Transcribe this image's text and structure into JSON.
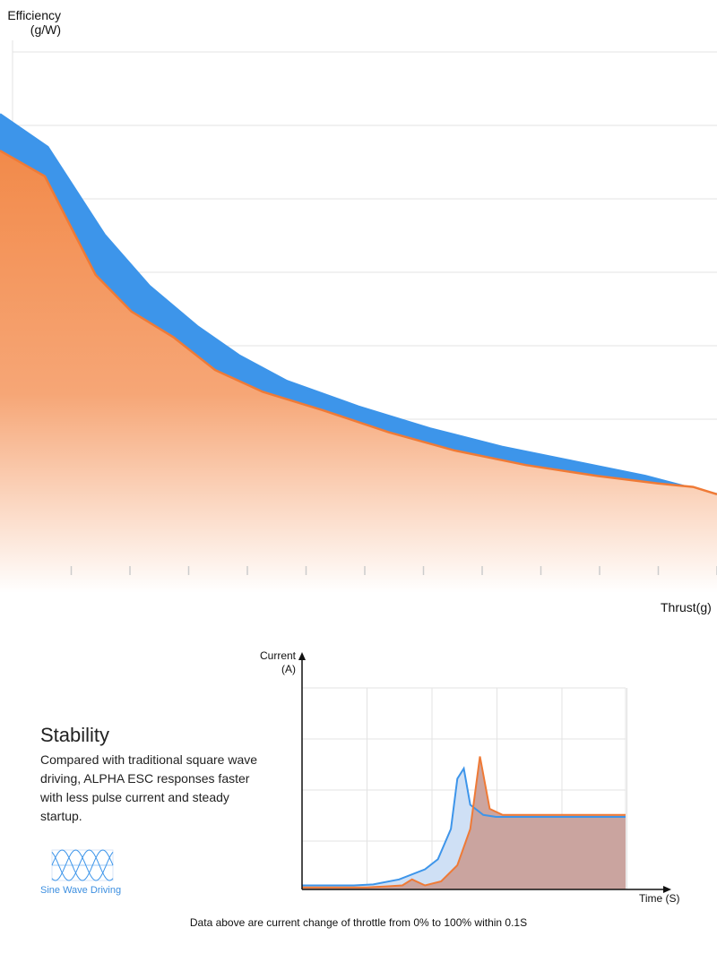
{
  "charts_meta": {
    "efficiency": {
      "ylabel_line1": "Efficiency",
      "ylabel_line2": "(g/W)",
      "xlabel": "Thrust(g)"
    },
    "current": {
      "ylabel_line1": "Current",
      "ylabel_line2": "(A)",
      "xlabel": "Time  (S)",
      "caption": "Data above are current change of throttle from 0% to 100% within 0.1S"
    }
  },
  "stability": {
    "title": "Stability",
    "body": "Compared with traditional square wave driving, ALPHA ESC responses faster with less pulse current and steady startup.",
    "icon": "sine-wave-icon",
    "icon_label": "Sine Wave Driving"
  },
  "colors": {
    "blue": "#3d95ea",
    "orange": "#ef7a36",
    "orange_fill_top": "#f28a4a",
    "current_orange_fill": "#c9a09a",
    "current_blue_fill": "#cfe0f5",
    "grid": "#e3e3e3"
  },
  "chart_data": [
    {
      "type": "area",
      "ylabel": "Efficiency (g/W)",
      "xlabel": "Thrust(g)",
      "grid": true,
      "x_ticks": 12,
      "xlim": [
        0,
        12
      ],
      "ylim": [
        0,
        7.4
      ],
      "series": [
        {
          "color": "blue",
          "x": [
            0,
            0.8,
            1.75,
            2.5,
            3.3,
            4.0,
            4.8,
            6.0,
            7.2,
            8.4,
            9.6,
            10.8,
            11.5,
            12.0
          ],
          "y": [
            6.55,
            6.1,
            4.9,
            4.2,
            3.65,
            3.25,
            2.9,
            2.55,
            2.25,
            2.0,
            1.8,
            1.6,
            1.45,
            1.35
          ]
        },
        {
          "color": "orange",
          "x": [
            0,
            0.75,
            1.6,
            2.2,
            2.9,
            3.6,
            4.4,
            5.4,
            6.5,
            7.6,
            8.8,
            10.0,
            11.0,
            11.6,
            12.0
          ],
          "y": [
            6.05,
            5.7,
            4.35,
            3.85,
            3.5,
            3.05,
            2.75,
            2.5,
            2.2,
            1.95,
            1.75,
            1.6,
            1.5,
            1.45,
            1.35
          ]
        }
      ]
    },
    {
      "type": "line",
      "ylabel": "Current (A)",
      "xlabel": "Time (S)",
      "grid": true,
      "xlim": [
        0,
        0.1
      ],
      "ylim": [
        0,
        1.0
      ],
      "series": [
        {
          "color": "blue",
          "x": [
            0,
            0.008,
            0.016,
            0.022,
            0.03,
            0.038,
            0.042,
            0.046,
            0.048,
            0.05,
            0.052,
            0.056,
            0.06,
            0.07,
            0.08,
            0.09,
            0.1
          ],
          "y": [
            0.02,
            0.02,
            0.02,
            0.025,
            0.05,
            0.1,
            0.15,
            0.3,
            0.55,
            0.6,
            0.42,
            0.37,
            0.36,
            0.36,
            0.36,
            0.36,
            0.36
          ]
        },
        {
          "color": "orange",
          "x": [
            0,
            0.01,
            0.02,
            0.026,
            0.031,
            0.034,
            0.038,
            0.043,
            0.048,
            0.052,
            0.055,
            0.058,
            0.062,
            0.07,
            0.08,
            0.09,
            0.1
          ],
          "y": [
            0.01,
            0.01,
            0.01,
            0.015,
            0.02,
            0.05,
            0.02,
            0.04,
            0.12,
            0.3,
            0.66,
            0.4,
            0.37,
            0.37,
            0.37,
            0.37,
            0.37
          ]
        }
      ]
    }
  ]
}
